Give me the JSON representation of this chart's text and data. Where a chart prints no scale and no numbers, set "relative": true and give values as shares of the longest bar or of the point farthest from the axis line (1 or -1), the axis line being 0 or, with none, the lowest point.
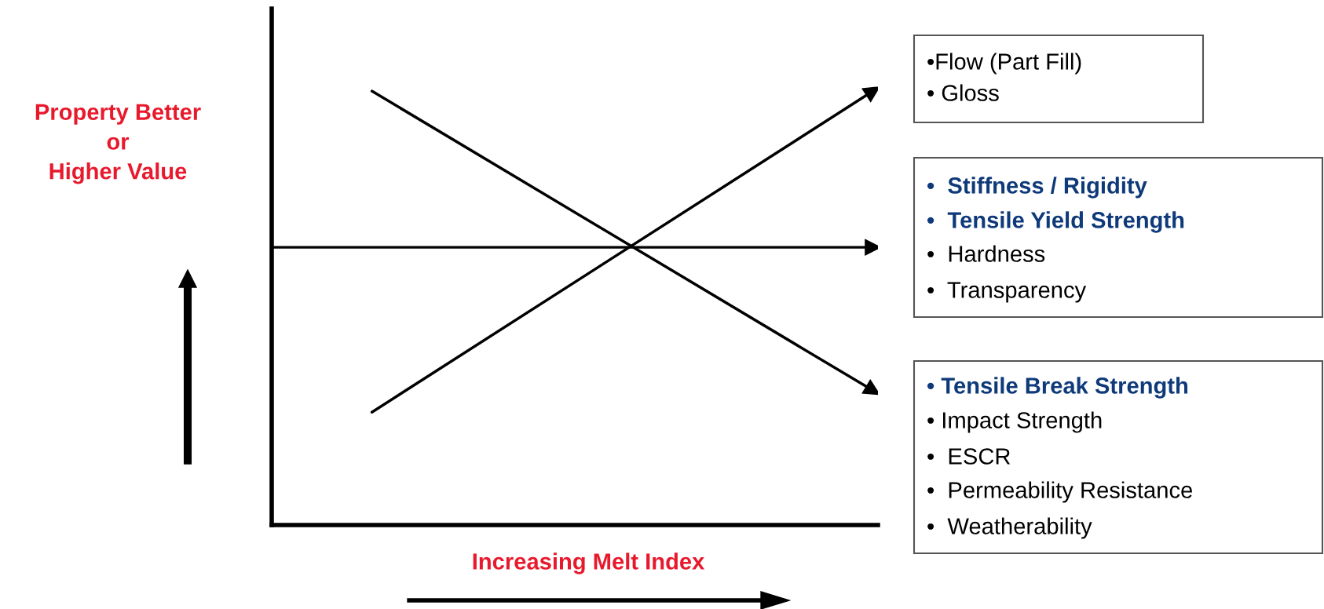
{
  "chart_data": {
    "type": "line",
    "relative": true,
    "xlabel": "Increasing Melt Index",
    "ylabel": "Property Better\nor\nHigher Value",
    "categories": [
      null,
      null,
      null,
      null,
      null,
      null,
      null
    ],
    "series": [
      {
        "color": "#000000",
        "values": [
          null,
          0.26,
          null,
          null,
          null,
          null,
          1.0
        ]
      },
      {
        "color": "#000000",
        "values": [
          null,
          1.0,
          null,
          null,
          null,
          null,
          0.31
        ]
      },
      {
        "color": "#000000",
        "values": [
          0.64,
          null,
          null,
          null,
          null,
          null,
          0.64
        ]
      }
    ],
    "grid": false,
    "legend": false,
    "marker": "triangle",
    "line_style": "solid",
    "annotations": [
      "•Flow (Part Fill)",
      "• Gloss",
      "•  Stiffness / Rigidity",
      "•  Tensile Yield Strength",
      "•  Hardness",
      "•  Transparency",
      "• Tensile Break Strength",
      "• Impact Strength",
      "•  ESCR",
      "•  Permeability Resistance",
      "•  Weatherability"
    ]
  }
}
